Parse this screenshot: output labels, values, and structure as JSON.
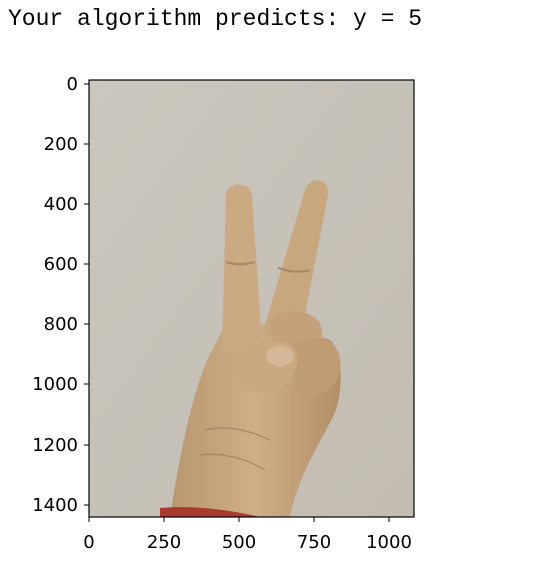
{
  "output": {
    "prediction_text": "Your algorithm predicts: y = 5"
  },
  "figure": {
    "y_ticks": [
      "0",
      "200",
      "400",
      "600",
      "800",
      "1000",
      "1200",
      "1400"
    ],
    "x_ticks": [
      "0",
      "250",
      "500",
      "750",
      "1000"
    ],
    "image_subject": "hand-peace-sign",
    "colors": {
      "background_wall": "#c9c4bb",
      "skin": "#c9a883",
      "skin_shadow": "#a88864",
      "sleeve": "#a83a30"
    }
  }
}
